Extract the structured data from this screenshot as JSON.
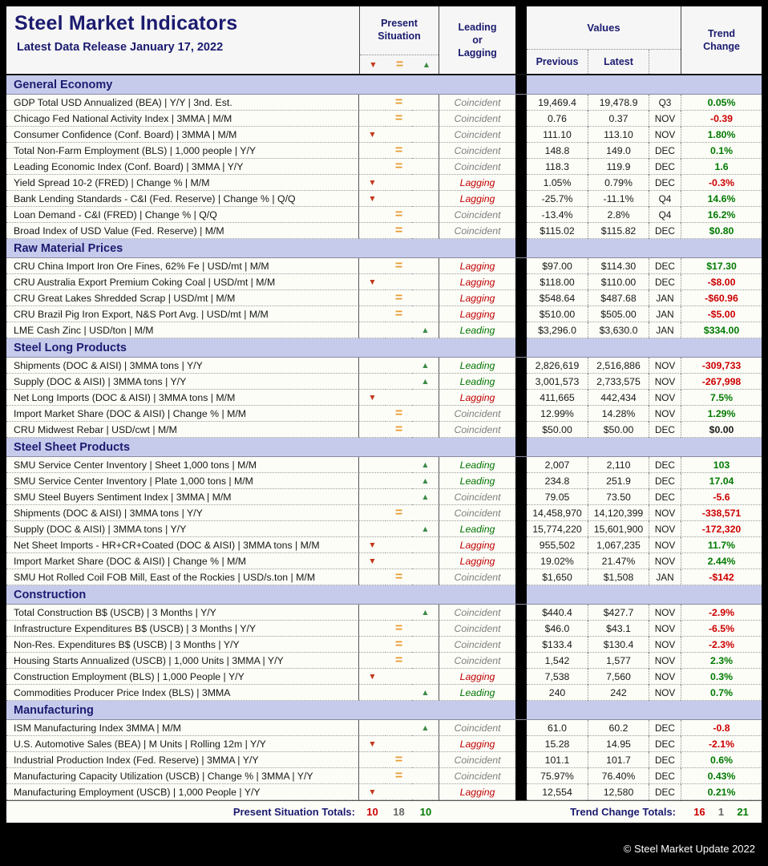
{
  "header": {
    "title": "Steel Market Indicators",
    "subtitle": "Latest Data Release January 17, 2022",
    "col_present_situation": "Present\nSituation",
    "col_leading_lagging": "Leading\nor\nLagging",
    "col_values": "Values",
    "col_previous": "Previous",
    "col_latest": "Latest",
    "col_trend_change": "Trend\nChange"
  },
  "icons": {
    "down": "▼",
    "neutral": "=",
    "up": "▲"
  },
  "colors": {
    "navy": "#1b1b6f",
    "section_bg": "#c6cbec",
    "down_red": "#c23a1c",
    "neutral_orange": "#e79a2e",
    "up_green": "#3d8c46",
    "trend_up": "#007a00",
    "trend_down": "#cc0000",
    "lagging": "#c00000",
    "leading": "#007500",
    "coincident": "#7f7f7f"
  },
  "sections": [
    {
      "name": "General Economy",
      "rows": [
        {
          "label": "GDP Total USD Annualized (BEA) | Y/Y | 3nd. Est.",
          "situation": "neutral",
          "timing": "Coincident",
          "previous": "19,469.4",
          "latest": "19,478.9",
          "period": "Q3",
          "trend": "0.05%",
          "trend_dir": "up"
        },
        {
          "label": "Chicago Fed National Activity Index | 3MMA | M/M",
          "situation": "neutral",
          "timing": "Coincident",
          "previous": "0.76",
          "latest": "0.37",
          "period": "NOV",
          "trend": "-0.39",
          "trend_dir": "down"
        },
        {
          "label": "Consumer Confidence (Conf. Board) | 3MMA | M/M",
          "situation": "down",
          "timing": "Coincident",
          "previous": "111.10",
          "latest": "113.10",
          "period": "NOV",
          "trend": "1.80%",
          "trend_dir": "up"
        },
        {
          "label": "Total Non-Farm Employment (BLS) | 1,000 people | Y/Y",
          "situation": "neutral",
          "timing": "Coincident",
          "previous": "148.8",
          "latest": "149.0",
          "period": "DEC",
          "trend": "0.1%",
          "trend_dir": "up"
        },
        {
          "label": "Leading Economic Index (Conf. Board) | 3MMA | Y/Y",
          "situation": "neutral",
          "timing": "Coincident",
          "previous": "118.3",
          "latest": "119.9",
          "period": "DEC",
          "trend": "1.6",
          "trend_dir": "up"
        },
        {
          "label": "Yield Spread 10-2 (FRED) | Change % | M/M",
          "situation": "down",
          "timing": "Lagging",
          "previous": "1.05%",
          "latest": "0.79%",
          "period": "DEC",
          "trend": "-0.3%",
          "trend_dir": "down"
        },
        {
          "label": "Bank Lending Standards - C&I (Fed. Reserve) | Change % | Q/Q",
          "situation": "down",
          "timing": "Lagging",
          "previous": "-25.7%",
          "latest": "-11.1%",
          "period": "Q4",
          "trend": "14.6%",
          "trend_dir": "up"
        },
        {
          "label": "Loan Demand - C&I (FRED) | Change % | Q/Q",
          "situation": "neutral",
          "timing": "Coincident",
          "previous": "-13.4%",
          "latest": "2.8%",
          "period": "Q4",
          "trend": "16.2%",
          "trend_dir": "up"
        },
        {
          "label": "Broad Index of USD Value (Fed. Reserve) | M/M",
          "situation": "neutral",
          "timing": "Coincident",
          "previous": "$115.02",
          "latest": "$115.82",
          "period": "DEC",
          "trend": "$0.80",
          "trend_dir": "up"
        }
      ]
    },
    {
      "name": "Raw Material Prices",
      "rows": [
        {
          "label": "CRU China Import Iron Ore Fines, 62% Fe | USD/mt | M/M",
          "situation": "neutral",
          "timing": "Lagging",
          "previous": "$97.00",
          "latest": "$114.30",
          "period": "DEC",
          "trend": "$17.30",
          "trend_dir": "up"
        },
        {
          "label": "CRU Australia Export Premium Coking Coal | USD/mt | M/M",
          "situation": "down",
          "timing": "Lagging",
          "previous": "$118.00",
          "latest": "$110.00",
          "period": "DEC",
          "trend": "-$8.00",
          "trend_dir": "down"
        },
        {
          "label": "CRU Great Lakes Shredded Scrap | USD/mt | M/M",
          "situation": "neutral",
          "timing": "Lagging",
          "previous": "$548.64",
          "latest": "$487.68",
          "period": "JAN",
          "trend": "-$60.96",
          "trend_dir": "down"
        },
        {
          "label": "CRU Brazil Pig Iron Export, N&S Port Avg. | USD/mt | M/M",
          "situation": "neutral",
          "timing": "Lagging",
          "previous": "$510.00",
          "latest": "$505.00",
          "period": "JAN",
          "trend": "-$5.00",
          "trend_dir": "down"
        },
        {
          "label": "LME Cash Zinc | USD/ton | M/M",
          "situation": "up",
          "timing": "Leading",
          "previous": "$3,296.0",
          "latest": "$3,630.0",
          "period": "JAN",
          "trend": "$334.00",
          "trend_dir": "up"
        }
      ]
    },
    {
      "name": "Steel Long Products",
      "rows": [
        {
          "label": "Shipments (DOC & AISI) | 3MMA tons | Y/Y",
          "situation": "up",
          "timing": "Leading",
          "previous": "2,826,619",
          "latest": "2,516,886",
          "period": "NOV",
          "trend": "-309,733",
          "trend_dir": "down"
        },
        {
          "label": "Supply (DOC & AISI) | 3MMA tons | Y/Y",
          "situation": "up",
          "timing": "Leading",
          "previous": "3,001,573",
          "latest": "2,733,575",
          "period": "NOV",
          "trend": "-267,998",
          "trend_dir": "down"
        },
        {
          "label": "Net Long Imports (DOC & AISI) | 3MMA tons | M/M",
          "situation": "down",
          "timing": "Lagging",
          "previous": "411,665",
          "latest": "442,434",
          "period": "NOV",
          "trend": "7.5%",
          "trend_dir": "up"
        },
        {
          "label": "Import Market Share (DOC & AISI) | Change % | M/M",
          "situation": "neutral",
          "timing": "Coincident",
          "previous": "12.99%",
          "latest": "14.28%",
          "period": "NOV",
          "trend": "1.29%",
          "trend_dir": "up"
        },
        {
          "label": "CRU Midwest Rebar | USD/cwt | M/M",
          "situation": "neutral",
          "timing": "Coincident",
          "previous": "$50.00",
          "latest": "$50.00",
          "period": "DEC",
          "trend": "$0.00",
          "trend_dir": "flat"
        }
      ]
    },
    {
      "name": "Steel Sheet Products",
      "rows": [
        {
          "label": "SMU Service Center Inventory | Sheet 1,000 tons | M/M",
          "situation": "up",
          "timing": "Leading",
          "previous": "2,007",
          "latest": "2,110",
          "period": "DEC",
          "trend": "103",
          "trend_dir": "up"
        },
        {
          "label": "SMU Service Center Inventory | Plate 1,000 tons | M/M",
          "situation": "up",
          "timing": "Leading",
          "previous": "234.8",
          "latest": "251.9",
          "period": "DEC",
          "trend": "17.04",
          "trend_dir": "up"
        },
        {
          "label": "SMU Steel Buyers Sentiment Index | 3MMA | M/M",
          "situation": "up",
          "timing": "Coincident",
          "previous": "79.05",
          "latest": "73.50",
          "period": "DEC",
          "trend": "-5.6",
          "trend_dir": "down"
        },
        {
          "label": "Shipments (DOC & AISI) | 3MMA tons | Y/Y",
          "situation": "neutral",
          "timing": "Coincident",
          "previous": "14,458,970",
          "latest": "14,120,399",
          "period": "NOV",
          "trend": "-338,571",
          "trend_dir": "down"
        },
        {
          "label": "Supply (DOC & AISI) | 3MMA tons | Y/Y",
          "situation": "up",
          "timing": "Leading",
          "previous": "15,774,220",
          "latest": "15,601,900",
          "period": "NOV",
          "trend": "-172,320",
          "trend_dir": "down"
        },
        {
          "label": "Net Sheet Imports - HR+CR+Coated (DOC & AISI) | 3MMA tons | M/M",
          "situation": "down",
          "timing": "Lagging",
          "previous": "955,502",
          "latest": "1,067,235",
          "period": "NOV",
          "trend": "11.7%",
          "trend_dir": "up"
        },
        {
          "label": "Import Market Share (DOC & AISI) | Change % | M/M",
          "situation": "down",
          "timing": "Lagging",
          "previous": "19.02%",
          "latest": "21.47%",
          "period": "NOV",
          "trend": "2.44%",
          "trend_dir": "up"
        },
        {
          "label": "SMU Hot Rolled Coil FOB Mill, East of the Rockies | USD/s.ton | M/M",
          "situation": "neutral",
          "timing": "Coincident",
          "previous": "$1,650",
          "latest": "$1,508",
          "period": "JAN",
          "trend": "-$142",
          "trend_dir": "down"
        }
      ]
    },
    {
      "name": "Construction",
      "rows": [
        {
          "label": "Total Construction B$ (USCB) | 3 Months | Y/Y",
          "situation": "up",
          "timing": "Coincident",
          "previous": "$440.4",
          "latest": "$427.7",
          "period": "NOV",
          "trend": "-2.9%",
          "trend_dir": "down"
        },
        {
          "label": "Infrastructure Expenditures B$ (USCB) | 3 Months | Y/Y",
          "situation": "neutral",
          "timing": "Coincident",
          "previous": "$46.0",
          "latest": "$43.1",
          "period": "NOV",
          "trend": "-6.5%",
          "trend_dir": "down"
        },
        {
          "label": "Non-Res. Expenditures B$ (USCB) | 3 Months | Y/Y",
          "situation": "neutral",
          "timing": "Coincident",
          "previous": "$133.4",
          "latest": "$130.4",
          "period": "NOV",
          "trend": "-2.3%",
          "trend_dir": "down"
        },
        {
          "label": "Housing Starts Annualized (USCB) | 1,000 Units | 3MMA | Y/Y",
          "situation": "neutral",
          "timing": "Coincident",
          "previous": "1,542",
          "latest": "1,577",
          "period": "NOV",
          "trend": "2.3%",
          "trend_dir": "up"
        },
        {
          "label": "Construction Employment (BLS) | 1,000 People | Y/Y",
          "situation": "down",
          "timing": "Lagging",
          "previous": "7,538",
          "latest": "7,560",
          "period": "NOV",
          "trend": "0.3%",
          "trend_dir": "up"
        },
        {
          "label": "Commodities Producer Price Index (BLS) | 3MMA",
          "situation": "up",
          "timing": "Leading",
          "previous": "240",
          "latest": "242",
          "period": "NOV",
          "trend": "0.7%",
          "trend_dir": "up"
        }
      ]
    },
    {
      "name": "Manufacturing",
      "rows": [
        {
          "label": "ISM Manufacturing Index 3MMA | M/M",
          "situation": "up",
          "timing": "Coincident",
          "previous": "61.0",
          "latest": "60.2",
          "period": "DEC",
          "trend": "-0.8",
          "trend_dir": "down"
        },
        {
          "label": "U.S. Automotive Sales (BEA) | M Units | Rolling 12m | Y/Y",
          "situation": "down",
          "timing": "Lagging",
          "previous": "15.28",
          "latest": "14.95",
          "period": "DEC",
          "trend": "-2.1%",
          "trend_dir": "down"
        },
        {
          "label": "Industrial Production Index (Fed. Reserve) | 3MMA | Y/Y",
          "situation": "neutral",
          "timing": "Coincident",
          "previous": "101.1",
          "latest": "101.7",
          "period": "DEC",
          "trend": "0.6%",
          "trend_dir": "up"
        },
        {
          "label": "Manufacturing Capacity Utilization (USCB) | Change % | 3MMA | Y/Y",
          "situation": "neutral",
          "timing": "Coincident",
          "previous": "75.97%",
          "latest": "76.40%",
          "period": "DEC",
          "trend": "0.43%",
          "trend_dir": "up"
        },
        {
          "label": "Manufacturing Employment (USCB) | 1,000 People | Y/Y",
          "situation": "down",
          "timing": "Lagging",
          "previous": "12,554",
          "latest": "12,580",
          "period": "DEC",
          "trend": "0.21%",
          "trend_dir": "up"
        }
      ]
    }
  ],
  "footer": {
    "present_label": "Present Situation Totals:",
    "present_down": "10",
    "present_neutral": "18",
    "present_up": "10",
    "trend_label": "Trend Change Totals:",
    "trend_down": "16",
    "trend_neutral": "1",
    "trend_up": "21"
  },
  "copyright": "© Steel Market Update 2022"
}
